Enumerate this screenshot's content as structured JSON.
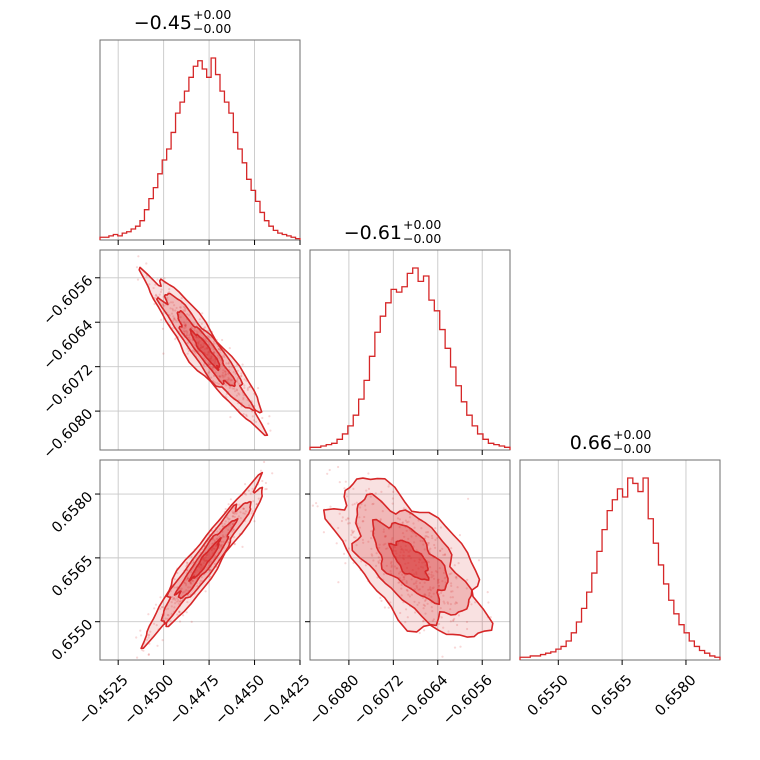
{
  "chart_data": {
    "type": "scatter",
    "description_kind": "corner-plot",
    "series_color": "#d62728",
    "grid": true,
    "parameters": [
      {
        "index": 0,
        "title": {
          "main": "−0.45",
          "sup": "+0.00",
          "sub": "−0.00"
        },
        "range": [
          -0.4535,
          -0.4425
        ],
        "ticks": [
          -0.4525,
          -0.45,
          -0.4475,
          -0.445,
          -0.4425
        ],
        "tick_labels": [
          "−0.4525",
          "−0.4500",
          "−0.4475",
          "−0.4450",
          "−0.4425"
        ],
        "histogram": {
          "mean": -0.4477,
          "std": 0.0013,
          "bin_counts": [
            2,
            2,
            3,
            4,
            3,
            5,
            6,
            8,
            10,
            14,
            22,
            30,
            38,
            48,
            58,
            66,
            78,
            92,
            100,
            108,
            118,
            126,
            130,
            124,
            118,
            132,
            120,
            108,
            100,
            92,
            78,
            66,
            56,
            44,
            36,
            28,
            20,
            14,
            10,
            7,
            5,
            4,
            3,
            2,
            1
          ]
        }
      },
      {
        "index": 1,
        "title": {
          "main": "−0.61",
          "sup": "+0.00",
          "sub": "−0.00"
        },
        "range": [
          -0.6087,
          -0.6051
        ],
        "ticks": [
          -0.608,
          -0.6072,
          -0.6064,
          -0.6056
        ],
        "tick_labels": [
          "−0.6080",
          "−0.6072",
          "−0.6064",
          "−0.6056"
        ],
        "histogram": {
          "mean": -0.6069,
          "std": 0.00055,
          "bin_counts": [
            2,
            2,
            3,
            4,
            5,
            8,
            12,
            18,
            26,
            38,
            52,
            70,
            88,
            100,
            110,
            120,
            118,
            122,
            132,
            136,
            126,
            130,
            112,
            104,
            90,
            76,
            62,
            48,
            36,
            26,
            18,
            12,
            8,
            5,
            4,
            3,
            2
          ]
        }
      },
      {
        "index": 2,
        "title": {
          "main": "0.66",
          "sup": "+0.00",
          "sub": "−0.00"
        },
        "range": [
          0.6541,
          0.6588
        ],
        "ticks": [
          0.655,
          0.6565,
          0.658
        ],
        "tick_labels": [
          "0.6550",
          "0.6565",
          "0.6580"
        ],
        "histogram": {
          "mean": 0.65645,
          "std": 0.00075,
          "bin_counts": [
            2,
            2,
            3,
            3,
            4,
            5,
            6,
            8,
            10,
            14,
            20,
            28,
            38,
            50,
            64,
            80,
            96,
            110,
            118,
            126,
            120,
            134,
            130,
            124,
            134,
            104,
            86,
            70,
            56,
            44,
            34,
            26,
            20,
            14,
            10,
            7,
            5,
            3,
            2
          ]
        }
      }
    ],
    "pairs": [
      {
        "x_param": 0,
        "y_param": 1,
        "correlation": -0.93
      },
      {
        "x_param": 0,
        "y_param": 2,
        "correlation": 0.95
      },
      {
        "x_param": 1,
        "y_param": 2,
        "correlation": -0.62
      }
    ]
  }
}
